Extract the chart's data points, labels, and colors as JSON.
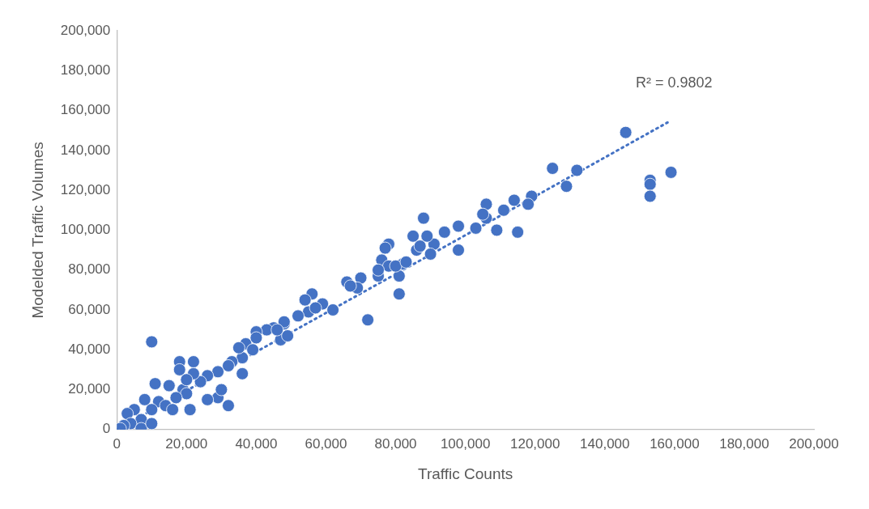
{
  "chart_data": {
    "type": "scatter",
    "xlabel": "Traffic Counts",
    "ylabel": "Modelded Traffic Volumes",
    "annotations": [
      "R² = 0.9802"
    ],
    "marker": "circle",
    "grid": false,
    "legend": false,
    "xlim": [
      0,
      200000
    ],
    "ylim": [
      0,
      200000
    ],
    "xticks": [
      0,
      {
        "value": 20000,
        "label": "20,000"
      },
      {
        "value": 40000,
        "label": "40,000"
      },
      {
        "value": 60000,
        "label": "60,000"
      },
      {
        "value": 80000,
        "label": "80,000"
      },
      {
        "value": 100000,
        "label": "100,000"
      },
      {
        "value": 120000,
        "label": "120,000"
      },
      {
        "value": 140000,
        "label": "140,000"
      },
      {
        "value": 160000,
        "label": "160,000"
      },
      {
        "value": 180000,
        "label": "180,000"
      },
      {
        "value": 200000,
        "label": "200,000"
      }
    ],
    "yticks": [
      0,
      {
        "value": 20000,
        "label": "20,000"
      },
      {
        "value": 40000,
        "label": "40,000"
      },
      {
        "value": 60000,
        "label": "60,000"
      },
      {
        "value": 80000,
        "label": "80,000"
      },
      {
        "value": 100000,
        "label": "100,000"
      },
      {
        "value": 120000,
        "label": "120,000"
      },
      {
        "value": 140000,
        "label": "140,000"
      },
      {
        "value": 160000,
        "label": "160,000"
      },
      {
        "value": 180000,
        "label": "180,000"
      },
      {
        "value": 200000,
        "label": "200,000"
      }
    ],
    "series": [
      {
        "color": "#4472c4",
        "x": [
          146000,
          125000,
          132000,
          129000,
          153000,
          153000,
          153000,
          159000,
          119000,
          118000,
          114000,
          115000,
          109000,
          106000,
          106000,
          111000,
          105000,
          103000,
          98000,
          98000,
          94000,
          91000,
          88000,
          89000,
          90000,
          86000,
          85000,
          87000,
          82000,
          81000,
          81000,
          78000,
          77000,
          76000,
          78000,
          75000,
          70000,
          72000,
          66000,
          69000,
          59000,
          62000,
          55000,
          56000,
          54000,
          52000,
          48000,
          48000,
          45000,
          43000,
          47000,
          40000,
          37000,
          39000,
          36000,
          35000,
          36000,
          33000,
          32000,
          32000,
          29000,
          29000,
          26000,
          24000,
          22000,
          18000,
          22000,
          19000,
          20000,
          15000,
          17000,
          10000,
          11000,
          12000,
          10000,
          14000,
          8000,
          5000,
          3000,
          7000,
          4000,
          2000,
          1000,
          7000,
          10000,
          16000,
          21000,
          26000,
          18000,
          30000,
          20000,
          40000,
          46000,
          49000,
          57000,
          67000,
          75000,
          80000,
          83000
        ],
        "values": [
          149000,
          131000,
          130000,
          122000,
          125000,
          123000,
          117000,
          129000,
          117000,
          113000,
          115000,
          99000,
          100000,
          106000,
          113000,
          110000,
          108000,
          101000,
          102000,
          90000,
          99000,
          93000,
          106000,
          97000,
          88000,
          90000,
          97000,
          92000,
          83000,
          68000,
          77000,
          93000,
          91000,
          85000,
          82000,
          77000,
          76000,
          55000,
          74000,
          71000,
          63000,
          60000,
          59000,
          68000,
          65000,
          57000,
          53000,
          54000,
          51000,
          50000,
          45000,
          49000,
          43000,
          40000,
          36000,
          41000,
          28000,
          34000,
          32000,
          12000,
          16000,
          29000,
          27000,
          24000,
          34000,
          34000,
          28000,
          20000,
          18000,
          22000,
          16000,
          44000,
          23000,
          14000,
          10000,
          12000,
          15000,
          10000,
          8000,
          5000,
          3000,
          2000,
          500,
          500,
          3000,
          10000,
          10000,
          15000,
          30000,
          20000,
          25000,
          46000,
          50000,
          47000,
          61000,
          72000,
          80000,
          82000,
          84000
        ]
      },
      {
        "type": "line",
        "color": "#4472c4",
        "line_style": "dotted",
        "marker": "none",
        "x": [
          0,
          158000
        ],
        "values": [
          0,
          154000
        ]
      }
    ]
  }
}
